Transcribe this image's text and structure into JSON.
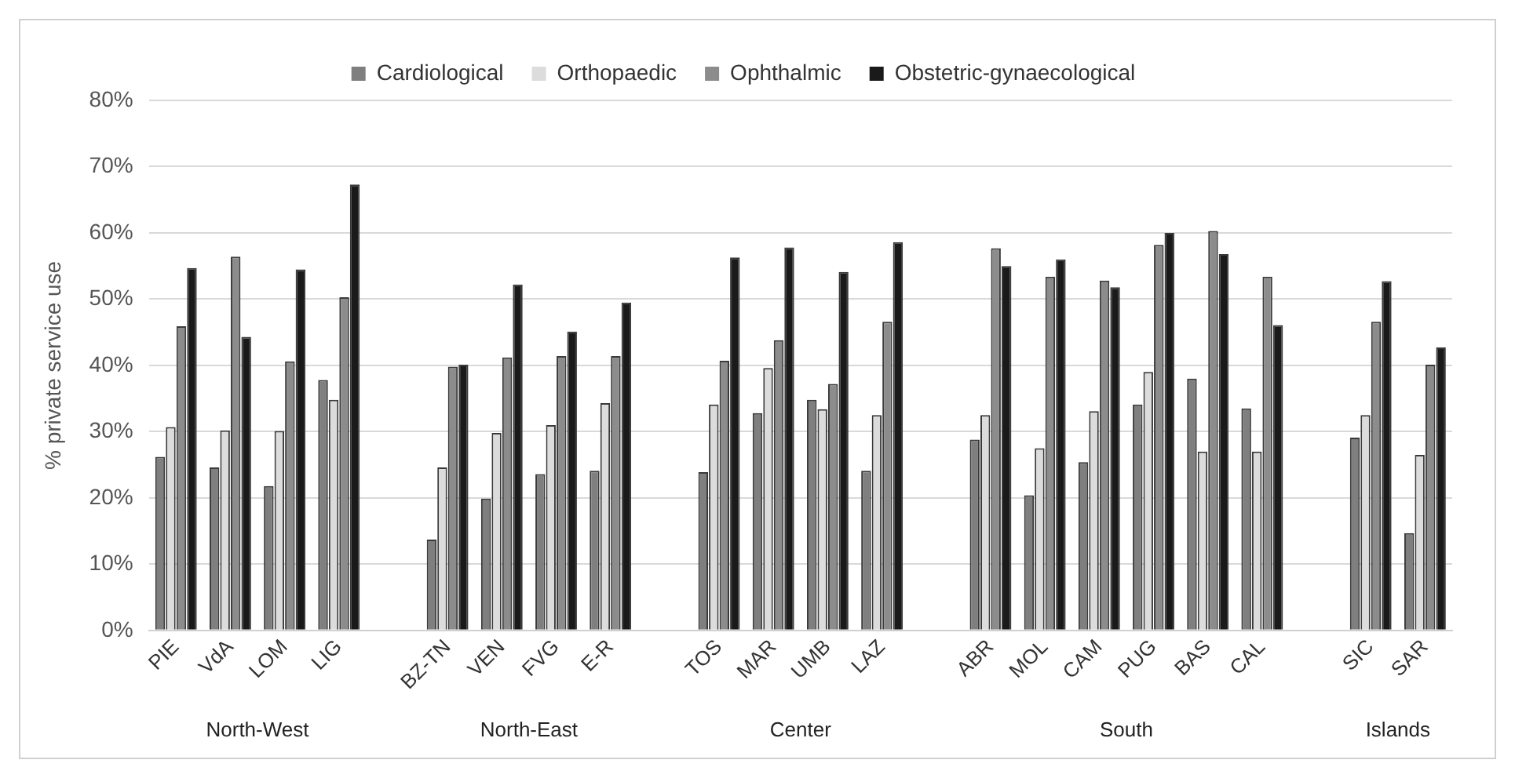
{
  "chart_data": {
    "type": "bar",
    "ylabel": "% private service use",
    "categories": [
      "PIE",
      "VdA",
      "LOM",
      "LIG",
      null,
      "BZ-TN",
      "VEN",
      "FVG",
      "E-R",
      null,
      "TOS",
      "MAR",
      "UMB",
      "LAZ",
      null,
      "ABR",
      "MOL",
      "CAM",
      "PUG",
      "BAS",
      "CAL",
      null,
      "SIC",
      "SAR"
    ],
    "series": [
      {
        "name": "Cardiological",
        "color": "#7f7f7f",
        "values": [
          26.2,
          24.6,
          21.8,
          37.8,
          null,
          13.7,
          19.9,
          23.6,
          24.1,
          null,
          23.9,
          32.8,
          34.8,
          24.1,
          null,
          28.8,
          20.4,
          25.4,
          34.1,
          38.0,
          33.5,
          null,
          29.1,
          14.7
        ]
      },
      {
        "name": "Orthopaedic",
        "color": "#dcdcdc",
        "values": [
          30.7,
          30.2,
          30.1,
          34.8,
          null,
          24.6,
          29.8,
          31.0,
          34.3,
          null,
          34.1,
          39.6,
          33.4,
          32.5,
          null,
          32.5,
          27.5,
          33.1,
          39.0,
          27.0,
          27.0,
          null,
          32.5,
          26.5
        ]
      },
      {
        "name": "Ophthalmic",
        "color": "#8c8c8c",
        "values": [
          45.9,
          56.4,
          40.6,
          50.3,
          null,
          39.8,
          41.2,
          41.4,
          41.4,
          null,
          40.7,
          43.8,
          37.2,
          46.6,
          null,
          57.7,
          53.4,
          52.8,
          58.2,
          60.3,
          53.4,
          null,
          46.6,
          40.1
        ]
      },
      {
        "name": "Obstetric-gynaecological",
        "color": "#1a1a1a",
        "values": [
          54.7,
          44.3,
          54.5,
          67.3,
          null,
          40.1,
          52.2,
          45.1,
          49.5,
          null,
          56.3,
          57.8,
          54.1,
          58.6,
          null,
          55.0,
          56.0,
          51.8,
          60.0,
          56.8,
          46.1,
          null,
          52.7,
          42.7
        ]
      }
    ],
    "ylim": [
      0,
      80
    ],
    "yticks": [
      {
        "value": 0,
        "label": "0%"
      },
      {
        "value": 10,
        "label": "10%"
      },
      {
        "value": 20,
        "label": "20%"
      },
      {
        "value": 30,
        "label": "30%"
      },
      {
        "value": 40,
        "label": "40%"
      },
      {
        "value": 50,
        "label": "50%"
      },
      {
        "value": 60,
        "label": "60%"
      },
      {
        "value": 70,
        "label": "70%"
      },
      {
        "value": 80,
        "label": "80%"
      }
    ],
    "grid": "y",
    "legend": "top",
    "annotations": [
      "North-West",
      "North-East",
      "Center",
      "South",
      "Islands"
    ]
  }
}
